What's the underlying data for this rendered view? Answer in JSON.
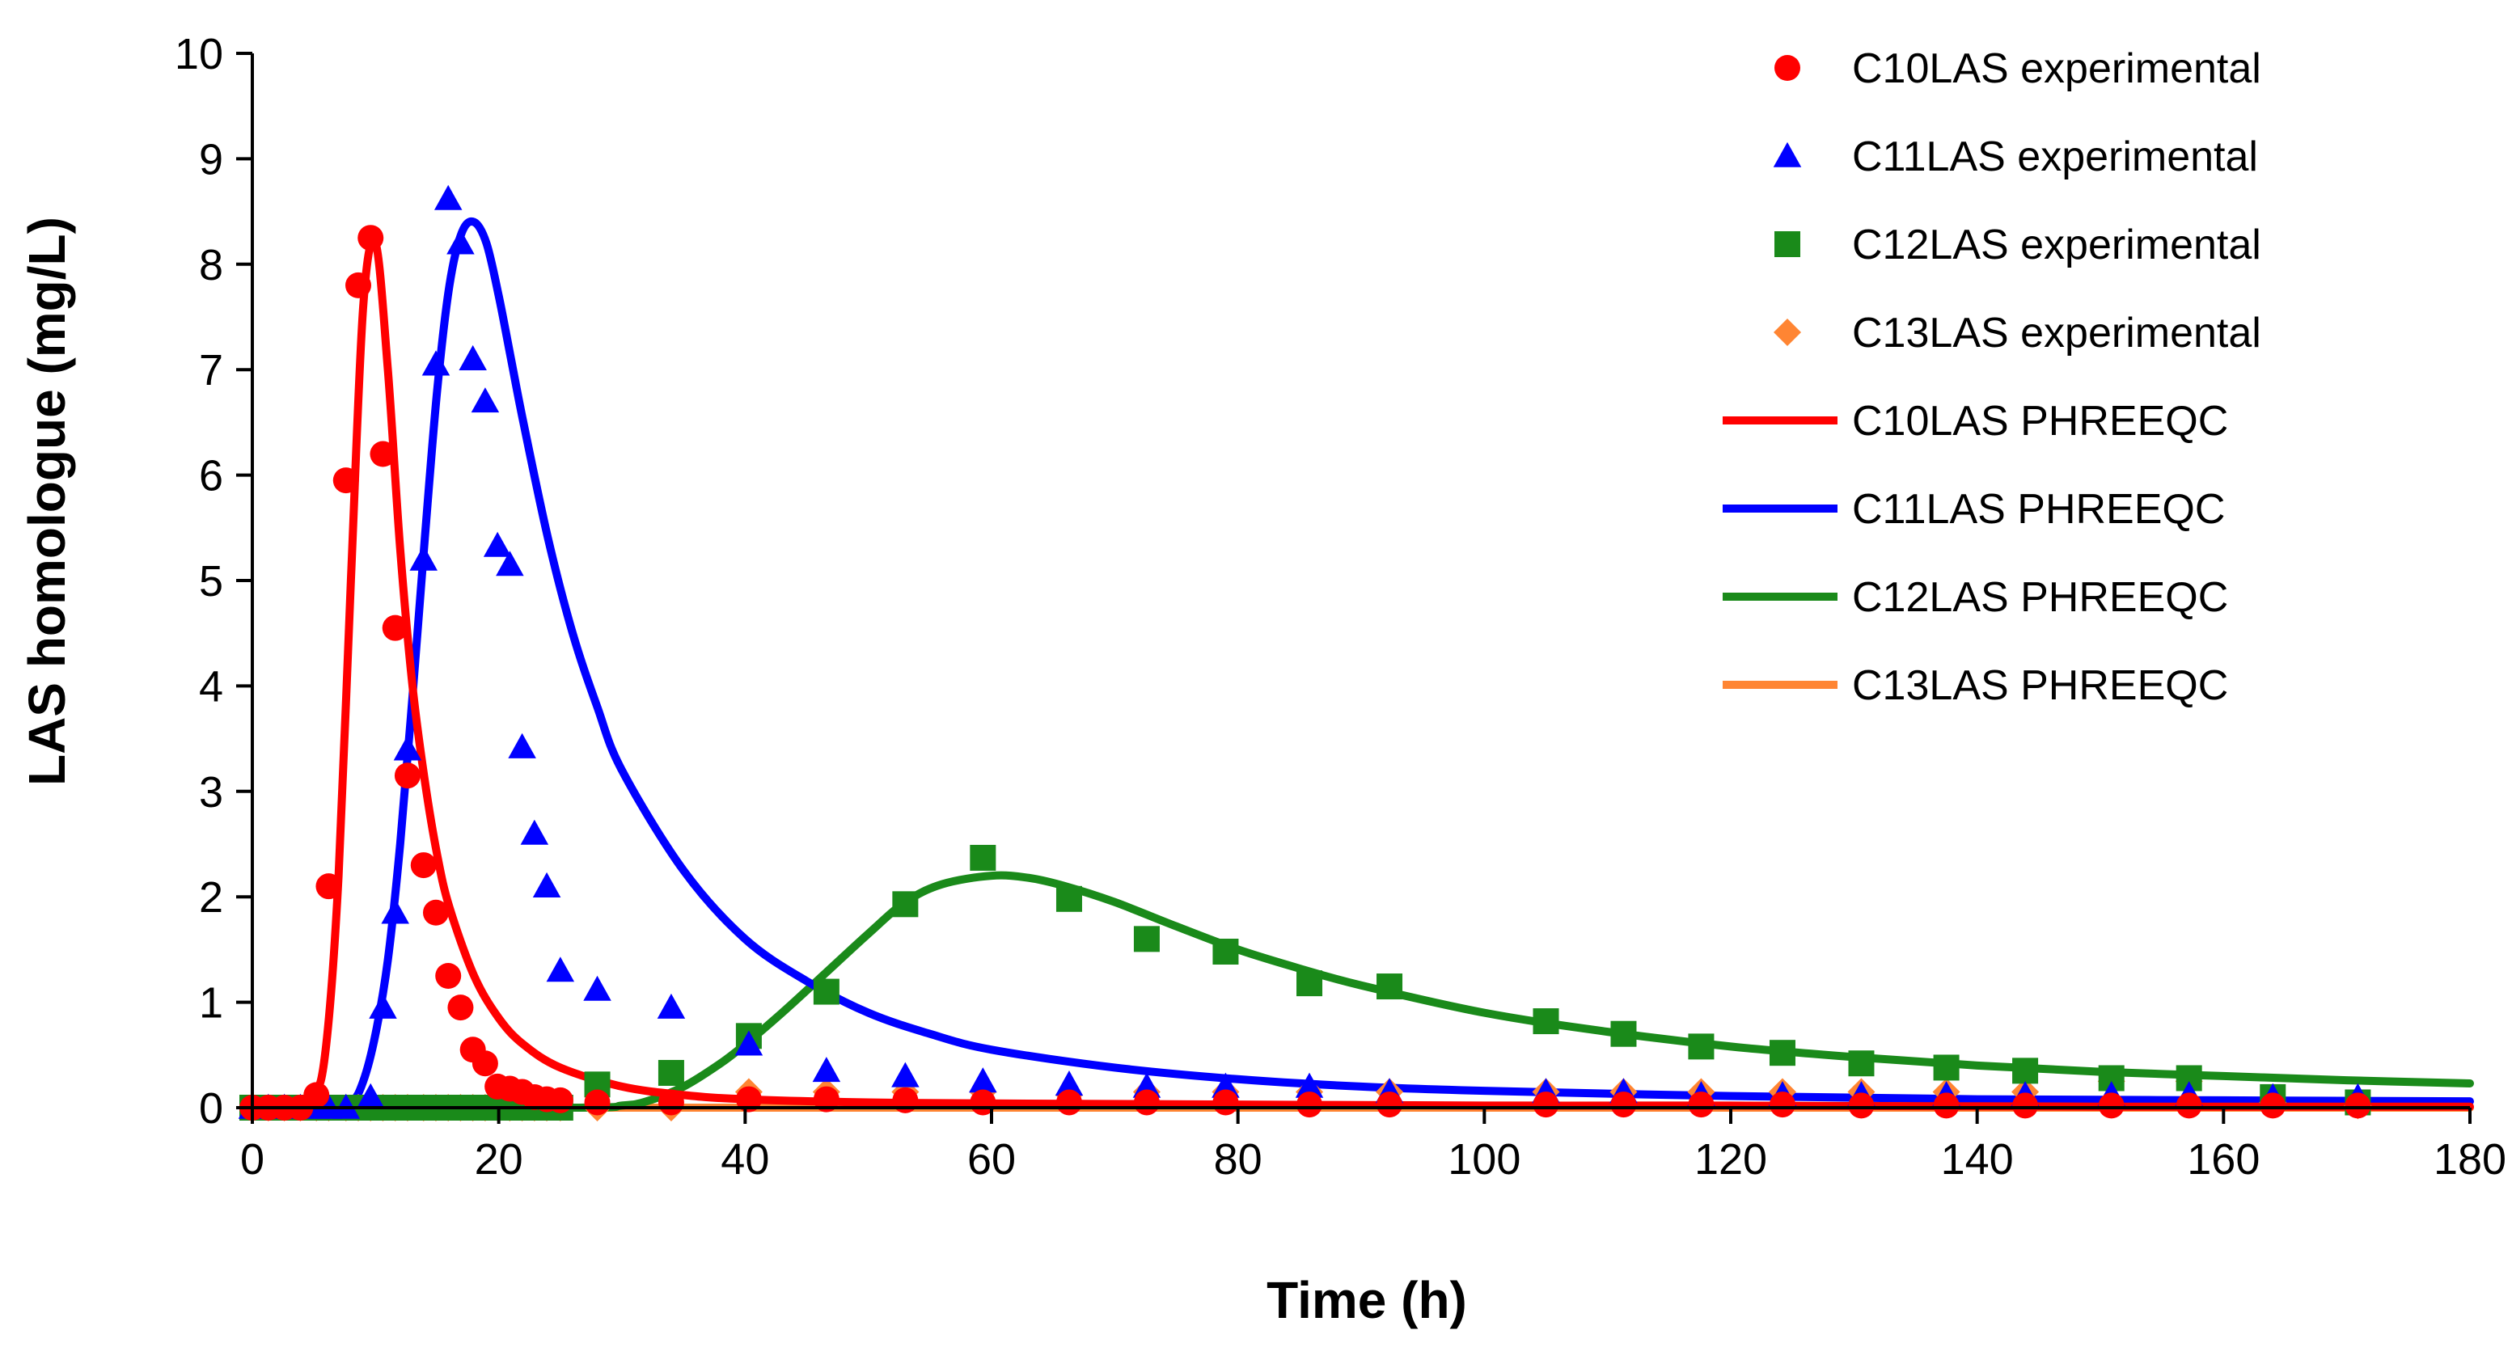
{
  "chart_data": {
    "type": "scatter",
    "title": "",
    "xlabel": "Time (h)",
    "ylabel": "LAS homologue (mg/L)",
    "xlim": [
      0,
      180
    ],
    "ylim": [
      0,
      10
    ],
    "xticks": [
      "0",
      "20",
      "40",
      "60",
      "80",
      "100",
      "120",
      "140",
      "160",
      "180"
    ],
    "yticks": [
      "0",
      "1",
      "2",
      "3",
      "4",
      "5",
      "6",
      "7",
      "8",
      "9",
      "10"
    ],
    "grid": false,
    "legend_position": "top-right",
    "colors": {
      "C10": "#ff0000",
      "C11": "#0000ff",
      "C12": "#1a8a1a",
      "C13": "#ff8533"
    },
    "series": [
      {
        "name": "C10LAS experimental",
        "kind": "scatter",
        "marker": "circle",
        "color": "#ff0000",
        "x": [
          0,
          1.3,
          2.6,
          3.9,
          5.2,
          6.2,
          7.6,
          8.6,
          9.6,
          10.6,
          11.6,
          12.6,
          13.9,
          14.9,
          15.9,
          16.9,
          17.9,
          18.9,
          19.9,
          20.9,
          21.9,
          22.9,
          23.9,
          25,
          28,
          34,
          40.3,
          46.6,
          53,
          59.3,
          66.3,
          72.6,
          79,
          85.8,
          92.3,
          105,
          111.3,
          117.6,
          124.2,
          130.6,
          137.5,
          143.9,
          150.9,
          157.2,
          164,
          170.9
        ],
        "y": [
          0,
          0,
          0,
          0,
          0.12,
          2.1,
          5.95,
          7.8,
          8.25,
          6.2,
          4.55,
          3.15,
          2.3,
          1.85,
          1.25,
          0.95,
          0.55,
          0.42,
          0.2,
          0.18,
          0.15,
          0.1,
          0.08,
          0.07,
          0.05,
          0.05,
          0.08,
          0.08,
          0.07,
          0.05,
          0.05,
          0.05,
          0.05,
          0.03,
          0.03,
          0.03,
          0.03,
          0.03,
          0.03,
          0.02,
          0.02,
          0.02,
          0.02,
          0.02,
          0.02,
          0.02
        ]
      },
      {
        "name": "C11LAS experimental",
        "kind": "scatter",
        "marker": "triangle",
        "color": "#0000ff",
        "x": [
          0,
          1.3,
          2.6,
          3.9,
          5.2,
          6.2,
          7.6,
          9.6,
          10.6,
          11.6,
          12.6,
          13.9,
          14.9,
          15.9,
          16.9,
          17.9,
          18.9,
          19.9,
          20.9,
          21.9,
          22.9,
          23.9,
          25,
          28,
          34,
          40.3,
          46.6,
          53,
          59.3,
          66.3,
          72.6,
          79,
          85.8,
          92.3,
          105,
          111.3,
          117.6,
          124.2,
          130.6,
          137.5,
          143.9,
          150.9,
          157.2,
          164,
          170.9
        ],
        "y": [
          0,
          0,
          0,
          0,
          0,
          0,
          0,
          0.1,
          0.95,
          1.85,
          3.4,
          5.2,
          7.05,
          8.62,
          8.2,
          7.1,
          6.7,
          5.33,
          5.15,
          3.42,
          2.6,
          2.1,
          1.3,
          1.12,
          0.95,
          0.6,
          0.35,
          0.3,
          0.25,
          0.22,
          0.2,
          0.2,
          0.2,
          0.15,
          0.15,
          0.15,
          0.12,
          0.12,
          0.12,
          0.12,
          0.12,
          0.12,
          0.12,
          0.1,
          0.1
        ]
      },
      {
        "name": "C12LAS experimental",
        "kind": "scatter",
        "marker": "square",
        "color": "#1a8a1a",
        "x": [
          0,
          1.3,
          2.6,
          3.9,
          5.2,
          6.2,
          7.6,
          8.6,
          9.6,
          10.6,
          11.6,
          12.6,
          13.9,
          14.9,
          15.9,
          16.9,
          17.9,
          18.9,
          19.9,
          20.9,
          21.9,
          22.9,
          23.9,
          25,
          28,
          34,
          40.3,
          46.6,
          53,
          59.3,
          66.3,
          72.6,
          79,
          85.8,
          92.3,
          105,
          111.3,
          117.6,
          124.2,
          130.6,
          137.5,
          143.9,
          150.9,
          157.2,
          164,
          170.9
        ],
        "y": [
          0,
          0,
          0,
          0,
          0,
          0,
          0,
          0,
          0,
          0,
          0,
          0,
          0,
          0,
          0,
          0,
          0,
          0,
          0,
          0,
          0,
          0,
          0,
          0,
          0.22,
          0.33,
          0.68,
          1.1,
          1.93,
          2.37,
          1.98,
          1.6,
          1.48,
          1.18,
          1.15,
          0.82,
          0.7,
          0.58,
          0.52,
          0.42,
          0.38,
          0.35,
          0.28,
          0.28,
          0.1,
          0.05
        ]
      },
      {
        "name": "C13LAS experimental",
        "kind": "scatter",
        "marker": "diamond",
        "color": "#ff8533",
        "x": [
          0,
          1.3,
          2.6,
          3.9,
          5.2,
          6.2,
          7.6,
          8.6,
          9.6,
          10.6,
          11.6,
          12.6,
          13.9,
          14.9,
          15.9,
          16.9,
          17.9,
          18.9,
          19.9,
          20.9,
          21.9,
          22.9,
          23.9,
          25,
          28,
          34,
          40.3,
          46.6,
          53,
          59.3,
          66.3,
          72.6,
          79,
          85.8,
          92.3,
          105,
          111.3,
          117.6,
          124.2,
          130.6,
          137.5,
          143.9,
          150.9,
          157.2,
          164,
          170.9
        ],
        "y": [
          0,
          0,
          0,
          0,
          0,
          0,
          0,
          0,
          0,
          0,
          0,
          0,
          0,
          0,
          0,
          0,
          0,
          0,
          0,
          0,
          0,
          0,
          0,
          0,
          0,
          0,
          0.15,
          0.15,
          0.15,
          0.15,
          0.12,
          0.15,
          0.15,
          0.15,
          0.15,
          0.15,
          0.15,
          0.15,
          0.15,
          0.15,
          0.15,
          0.15,
          0.25,
          0.25,
          0.05,
          0.02
        ]
      },
      {
        "name": "C10LAS PHREEQC",
        "kind": "line",
        "color": "#ff0000",
        "x": [
          0,
          3,
          5,
          6,
          7,
          8,
          9,
          10,
          11,
          12,
          13,
          14,
          15,
          16,
          18,
          20,
          22,
          25,
          30,
          35,
          40,
          50,
          60,
          80,
          100,
          120,
          150,
          180
        ],
        "y": [
          0,
          0,
          0.1,
          0.6,
          2.2,
          5.0,
          7.6,
          8.2,
          7.0,
          5.3,
          4.0,
          3.1,
          2.4,
          1.9,
          1.25,
          0.85,
          0.6,
          0.38,
          0.2,
          0.12,
          0.08,
          0.05,
          0.04,
          0.03,
          0.02,
          0.02,
          0.01,
          0.01
        ]
      },
      {
        "name": "C11LAS PHREEQC",
        "kind": "line",
        "color": "#0000ff",
        "x": [
          0,
          6,
          8,
          9,
          10,
          11,
          12,
          13,
          14,
          15,
          16,
          17,
          18,
          19,
          20,
          21,
          22,
          24,
          26,
          28,
          30,
          35,
          40,
          45,
          50,
          55,
          60,
          70,
          80,
          90,
          100,
          120,
          140,
          160,
          180
        ],
        "y": [
          0,
          0,
          0.05,
          0.25,
          0.7,
          1.4,
          2.5,
          3.9,
          5.4,
          6.8,
          7.8,
          8.3,
          8.4,
          8.2,
          7.7,
          7.1,
          6.5,
          5.4,
          4.5,
          3.8,
          3.2,
          2.25,
          1.6,
          1.2,
          0.9,
          0.7,
          0.55,
          0.38,
          0.27,
          0.2,
          0.16,
          0.11,
          0.08,
          0.07,
          0.06
        ]
      },
      {
        "name": "C12LAS PHREEQC",
        "kind": "line",
        "color": "#1a8a1a",
        "x": [
          0,
          26,
          30,
          32,
          35,
          38,
          40,
          43,
          46,
          50,
          53,
          56,
          60,
          63,
          66,
          70,
          75,
          80,
          85,
          90,
          100,
          110,
          120,
          130,
          140,
          150,
          160,
          170,
          180
        ],
        "y": [
          0,
          0,
          0.02,
          0.06,
          0.2,
          0.42,
          0.6,
          0.9,
          1.22,
          1.65,
          1.95,
          2.12,
          2.2,
          2.18,
          2.1,
          1.95,
          1.72,
          1.5,
          1.32,
          1.16,
          0.9,
          0.72,
          0.58,
          0.48,
          0.4,
          0.34,
          0.3,
          0.26,
          0.23
        ]
      },
      {
        "name": "C13LAS PHREEQC",
        "kind": "line",
        "color": "#ff8533",
        "x": [
          0,
          180
        ],
        "y": [
          0,
          0
        ]
      }
    ]
  }
}
